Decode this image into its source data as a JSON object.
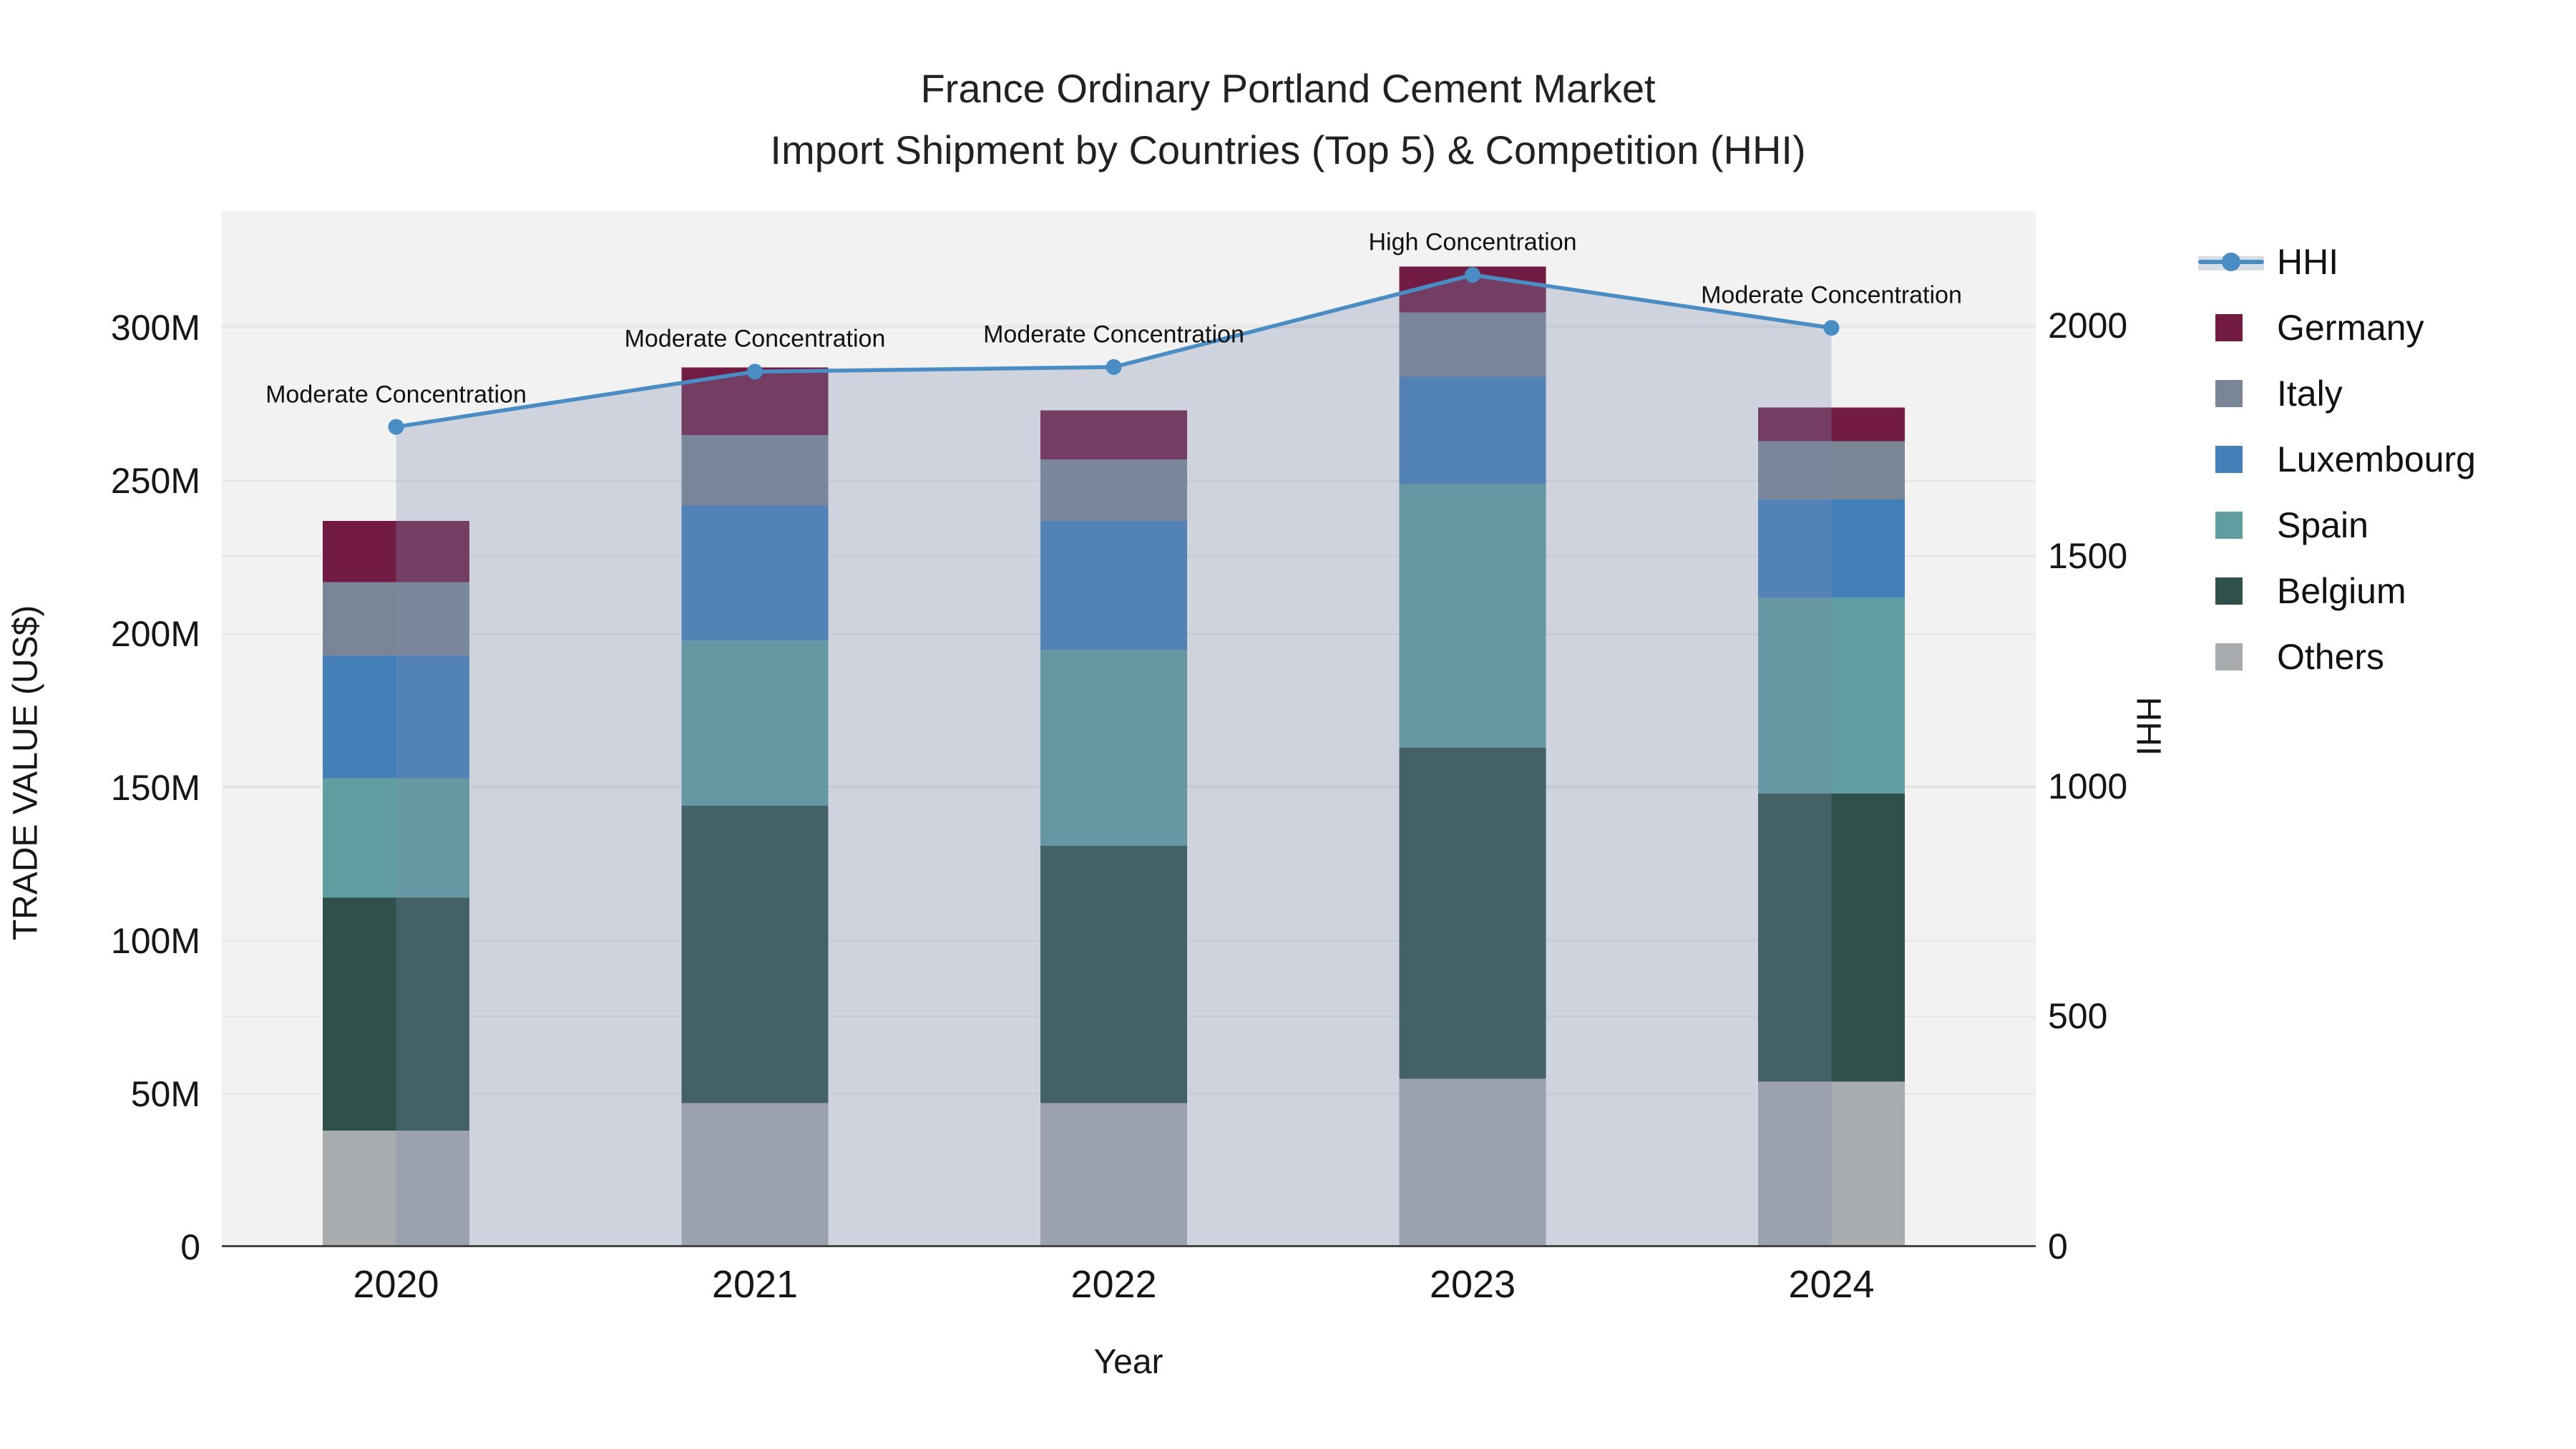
{
  "title": {
    "line1": "France Ordinary Portland Cement Market",
    "line2": "Import Shipment by Countries (Top 5) & Competition (HHI)"
  },
  "chart_data": {
    "type": "bar+line",
    "title": "France Ordinary Portland Cement Market — Import Shipment by Countries (Top 5) & Competition (HHI)",
    "categories": [
      "2020",
      "2021",
      "2022",
      "2023",
      "2024"
    ],
    "value_unit": "Million US$",
    "stack_order_bottom_to_top": [
      "Others",
      "Belgium",
      "Spain",
      "Luxembourg",
      "Italy",
      "Germany"
    ],
    "series": [
      {
        "name": "Germany",
        "color": "#721c44",
        "values": [
          20,
          22,
          16,
          15,
          11
        ]
      },
      {
        "name": "Italy",
        "color": "#7a8596",
        "values": [
          24,
          23,
          20,
          21,
          19
        ]
      },
      {
        "name": "Luxembourg",
        "color": "#4380ba",
        "values": [
          40,
          44,
          42,
          35,
          32
        ]
      },
      {
        "name": "Spain",
        "color": "#5f9da0",
        "values": [
          39,
          54,
          64,
          86,
          64
        ]
      },
      {
        "name": "Belgium",
        "color": "#2f504b",
        "values": [
          76,
          97,
          84,
          108,
          94
        ]
      },
      {
        "name": "Others",
        "color": "#a9acae",
        "values": [
          38,
          47,
          47,
          55,
          54
        ]
      }
    ],
    "bar_totals_M": [
      237,
      287,
      273,
      320,
      274
    ],
    "line_series": {
      "name": "HHI",
      "color": "#4a8dc5",
      "values": [
        1780,
        1900,
        1910,
        2110,
        1995
      ],
      "area_fill": "rgba(122,138,172,0.30)"
    },
    "annotations": [
      {
        "year": "2020",
        "text": "Moderate Concentration"
      },
      {
        "year": "2021",
        "text": "Moderate Concentration"
      },
      {
        "year": "2022",
        "text": "Moderate Concentration"
      },
      {
        "year": "2023",
        "text": "High Concentration"
      },
      {
        "year": "2024",
        "text": "Moderate Concentration"
      }
    ],
    "left_axis": {
      "title": "TRADE VALUE (US$)",
      "tick_labels": [
        "0",
        "50M",
        "100M",
        "150M",
        "200M",
        "250M",
        "300M"
      ],
      "tick_values": [
        0,
        50,
        100,
        150,
        200,
        250,
        300
      ],
      "range_M": [
        0,
        338
      ]
    },
    "right_axis": {
      "title": "HHI",
      "tick_labels": [
        "0",
        "500",
        "1000",
        "1500",
        "2000"
      ],
      "tick_values": [
        0,
        500,
        1000,
        1500,
        2000
      ],
      "range": [
        0,
        2249
      ]
    },
    "x_axis": {
      "title": "Year"
    },
    "legend": [
      {
        "name": "HHI",
        "type": "line"
      },
      {
        "name": "Germany",
        "type": "square",
        "color": "#721c44"
      },
      {
        "name": "Italy",
        "type": "square",
        "color": "#7a8596"
      },
      {
        "name": "Luxembourg",
        "type": "square",
        "color": "#4380ba"
      },
      {
        "name": "Spain",
        "type": "square",
        "color": "#5f9da0"
      },
      {
        "name": "Belgium",
        "type": "square",
        "color": "#2f504b"
      },
      {
        "name": "Others",
        "type": "square",
        "color": "#a9acae"
      }
    ],
    "style": {
      "plot_bg": "#f2f2f2",
      "grid_color": "#e4e4e4",
      "axis_line_color": "#444444",
      "legend_area_band": "#d8dce5"
    }
  }
}
